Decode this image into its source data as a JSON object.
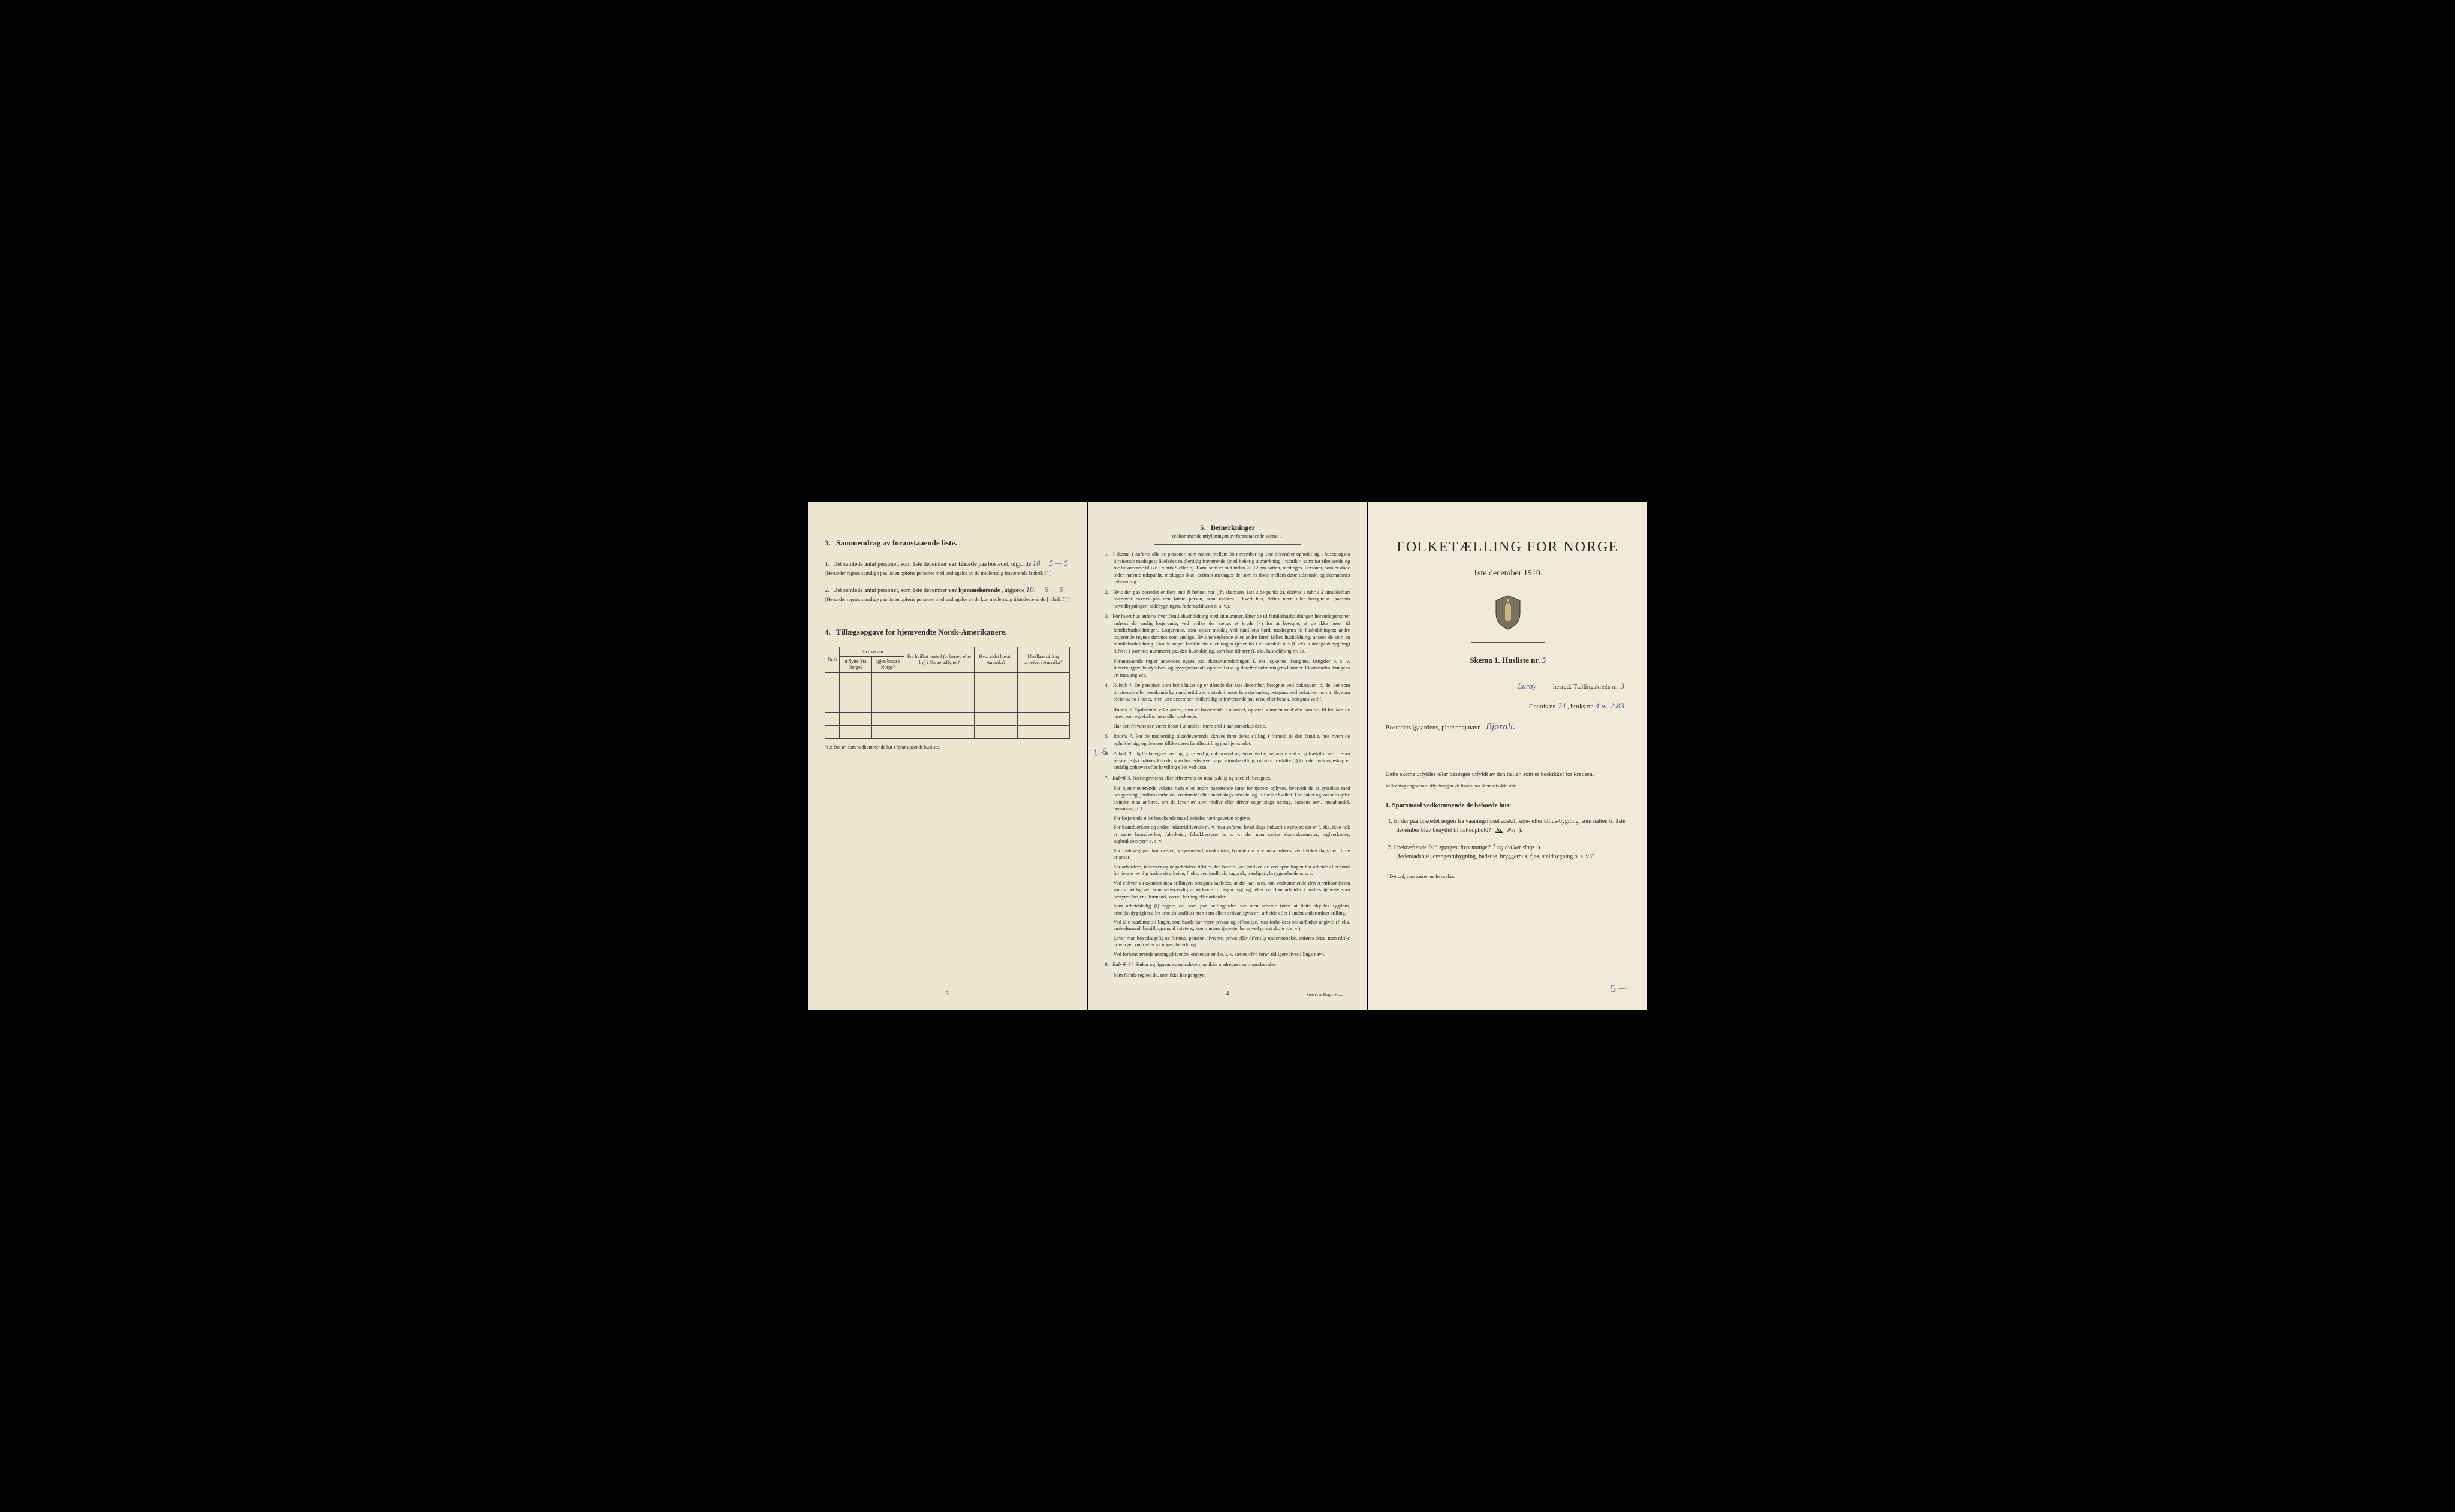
{
  "panel1": {
    "section3": {
      "num": "3.",
      "title": "Sammendrag av foranstaaende liste.",
      "item1": {
        "num": "1.",
        "text_a": "Det samlede antal personer, som 1ste december ",
        "bold_a": "var tilstede",
        "text_b": " paa bostedet, utgjorde ",
        "hand1": "10",
        "hand2": "5 — 5",
        "note": "(Herunder regnes samtlige paa listen opførte personer med undtagelse av de midlertidig fraværende [rubrik 6].)"
      },
      "item2": {
        "num": "2.",
        "text_a": "Det samlede antal personer, som 1ste december ",
        "bold_a": "var hjemmehørende",
        "text_b": ", utgjorde ",
        "hand1": "10.",
        "hand2": "5 — 5",
        "note": "(Herunder regnes samtlige paa listen opførte personer med undtagelse av de kun midlertidig tilstedeværende [rubrik 5].)"
      }
    },
    "section4": {
      "num": "4.",
      "title": "Tillægsopgave for hjemvendte Norsk-Amerikanere.",
      "table": {
        "headers": {
          "nr": "Nr.¹)",
          "hvilket_aar": "I hvilket aar",
          "utflyttet": "utflyttet fra Norge?",
          "igjen": "igjen bosat i Norge?",
          "fra_bosted": "Fra hvilket bosted (ɔ: herred eller by) i Norge utflyttet?",
          "hvor_sidst": "Hvor sidst bosat i Amerika?",
          "stilling": "I hvilken stilling arbeidet i Amerika?"
        },
        "empty_rows": 5
      },
      "footnote": "¹) ɔ: Det nr. som vedkommende har i foranstaaende husliste."
    },
    "page_num": "3"
  },
  "panel2": {
    "title_num": "5.",
    "title": "Bemerkninger",
    "subtitle": "vedkommende utfyldningen av foranstaaende skema 1.",
    "margin_note": "1–5",
    "remarks": [
      {
        "num": "1.",
        "text": "I skema 1 anføres alle de personer, som natten mellem 30 november og 1ste december opholdt sig i huset; ogsaa tilreisende medtages; likeledes midlertidig fraværende (med behørig anmerkning i rubrik 4 samt for tilreisende og for fraværende tillike i rubrik 5 eller 6). Barn, som er født inden kl. 12 om natten, medtages. Personer, som er døde inden nævnte tidspunkt, medtages ikke; derimot medtages de, som er døde mellem dette tidspunkt og skemaernes avhentning."
      },
      {
        "num": "2.",
        "text": "Hvis der paa bostedet er flere end ét beboet hus (jfr. skemaets 1ste side punkt 2), skrives i rubrik 2 umiddelbart ovenover navnet paa den første person, som opføres i hvert hus, dettes navn eller betegnelse (saasom hovedbygningen, sidebygningen, føderaadshuset o. s. v.)."
      },
      {
        "num": "3.",
        "text": "For hvert hus anføres hver familiehusholdning med sit nummer. Efter de til familiehusholdningen hørende personer anføres de enslig losjerende, ved hvilke der sættes et kryds (×) for at betegne, at de ikke hører til familiehusholdningen. Losjerende, som spiser middag ved familiens bord, medregnes til husholdningen; andre losjerende regnes derimot som enslige. Hvis to søskende eller andre fører fælles husholdning, ansees de som en familiehusholdning. Skulde noget familielem eller nogen tjener bo i et særskilt hus (f. eks. i drengestubygning) tilføies i parentes nummeret paa den husholdning, som han tilhører (f. eks. husholdning nr. 1).",
        "sub": [
          "Foranstaaende regler anvendes ogsaa paa ekstrahusholdninger, f. eks. sykehus, fattighus, fængsler o. s. v. Indretningens bestyrelses- og opsyspersonale opføres først og derefter indretningens lemmer. Ekstrahusholdningens art maa angives."
        ]
      },
      {
        "num": "4.",
        "lead": "Rubrik 4.",
        "text": "De personer, som bor i huset og er tilstede der 1ste december, betegnes ved bokstaven: b; de, der som tilreisende eller besøkende kun midlertidig er tilstede i huset 1ste december, betegnes ved bokstaverne: mt; de, som pleier at bo i huset, men 1ste december midlertidig er fraværende paa reise eller besøk, betegnes ved f.",
        "sub": [
          "Rubrik 6. Sjøfarende eller andre, som er fraværende i utlandet, opføres sammen med den familie, til hvilken de hører som egtefælle, børn eller søskende.",
          "Har den fraværende været bosat i utlandet i mere end 1 aar anmerkes dette."
        ]
      },
      {
        "num": "5.",
        "lead": "Rubrik 7.",
        "text": "For de midlertidig tilstedeværende skrives først deres stilling i forhold til den familie, hos hvem de opholder sig, og dernæst tillike deres familiestilling paa hjemstedet."
      },
      {
        "num": "6.",
        "lead": "Rubrik 8.",
        "text": "Ugifte betegnes ved ug, gifte ved g, enkemænd og enker ved e, separerte ved s og fraskilte ved f. Som separerte (s) anføres kun de, som har erhvervet separationsbevilling, og som fraskilte (f) kun de, hvis egteskap er endelig ophævet efter bevilling eller ved dom."
      },
      {
        "num": "7.",
        "lead": "Rubrik 9.",
        "text": "Næringsveiens eller erhvervets art maa tydelig og specielt betegnes.",
        "sub": [
          "For hjemmeværende voksne barn eller andre paarørende samt for tjenere oplyses, hvorvidt de er sysselsat med husgjerning, jordbruksarbeide, kreaturstel eller andet slags arbeide, og i tilfælde hvilket. For enker og voksne ugifte kvinder maa anføres, om de lever av sine midler eller driver nogenslags næring, saasom søm, smaahandel, pensionat, o. l.",
          "For losjerende eller besøkende maa likeledes næringsveien opgives.",
          "For haandverkere og andre industridrivende m. v. maa anføres, hvad slags industri de driver; det er f. eks. ikke nok at sætte haandverker, fabrikeier, fabrikbestyrer o. s. v.; der maa sættes skomakermester, teglverkseier, sagbruksbestyrer o. s. v.",
          "For fuldmægtiger, kontorister, opsynsmænd, maskinister, fyrbøtere o. s. v. maa anføres, ved hvilket slags bedrift de er ansat.",
          "For arbeidere, inderster og dagarbeidere tilføies den bedrift, ved hvilken de ved optællingen har arbeide eller forut for denne jevnlig hadde sit arbeide, f. eks. ved jordbruk, sagbruk, træsliperi, bryggearbeide o. s. v.",
          "Ved enhver virksomhet maa stillingen betegnes saaledes, at det kan sees, om vedkommende driver virksomheten som arbeidsgiver, som selvstændig arbeidende for egen regning, eller om han arbeider i andres tjeneste som bestyrer, betjent, formand, svend, lærling eller arbeider.",
          "Som arbeidsledig (l) regnes de, som paa tællingstiden var uten arbeide (uten at dette skyldes sygdom, arbeidsudygtighet eller arbeidskonflikt) men som ellers sedvanligvis er i arbeide eller i anden underordnet stilling.",
          "Ved alle saadanne stillinger, som baade kan være private og offentlige, maa forholdets beskaffenhet angives (f. eks. embedsmand, bestillingsmand i statens, kommunens tjeneste, lærer ved privat skole o. s. v.).",
          "Lever man hovedsagelig av formue, pension, livrente, privat eller offentlig understøttelse, anføres dette, men tillike erhvervet, om det er av nogen betydning.",
          "Ved forhenværende næringsdrivende, embedsmænd o. s. v. sættes «fv» foran tidligere livsstillings navn."
        ]
      },
      {
        "num": "8.",
        "lead": "Rubrik 14.",
        "text": "Sinker og lignende aandssløve maa ikke medregnes som aandssvake.",
        "sub": [
          "Som blinde regnes de, som ikke har gangsyn."
        ]
      }
    ],
    "page_num": "4",
    "printer": "Steen'ske Bogtr. Kr.a."
  },
  "panel3": {
    "title": "FOLKETÆLLING FOR NORGE",
    "date": "1ste december 1910.",
    "skema_label": "Skema 1.  Husliste nr.",
    "skema_hand": "5",
    "herred_hand": "Lurøy",
    "herred_label": "herred.  Tællingskreds nr.",
    "kreds_hand": "3",
    "gaard_label_a": "Gaards nr.",
    "gaard_hand_a": "74",
    "gaard_label_b": ", bruks nr.",
    "gaard_hand_b": "4  m. 2.83",
    "bosted_label": "Bostedets (gaardens, pladsens) navn",
    "bosted_hand": "Bjøralt.",
    "instruct": "Dette skema utfyldes eller besørges utfyldt av den tæller, som er beskikket for kredsen.",
    "instruct_small": "Veiledning angaaende utfyldningen vil findes paa skemaets 4de side.",
    "q_heading_num": "1.",
    "q_heading": "Spørsmaal vedkommende de beboede hus:",
    "q1": {
      "num": "1.",
      "text_a": "Er der paa bostedet nogen fra vaaningshuset adskilt side- eller uthus-bygning, som natten til 1ste december blev benyttet til natteophold?",
      "ja": "Ja.",
      "nei": "Nei",
      "sup": "¹)."
    },
    "q2": {
      "num": "2.",
      "text_a": "I bekræftende fald spørges: ",
      "hvormange": "hvormange?",
      "hand": "1",
      "text_b": " og hvilket slags",
      "sup": "¹)",
      "text_c": "(føderaadshus, drengestubygning, badstue, bryggerhus, fjøs, staldbygning o. s. v.)?"
    },
    "foot": "¹) Det ord, som passer, understrekes.",
    "margin_hand": "5 —"
  },
  "colors": {
    "bg": "#000000",
    "paper1": "#ece6d0",
    "paper2": "#ede8d5",
    "paper3": "#f0ead7",
    "ink": "#2a2a2a",
    "hand_ink": "#4a5a8a"
  }
}
